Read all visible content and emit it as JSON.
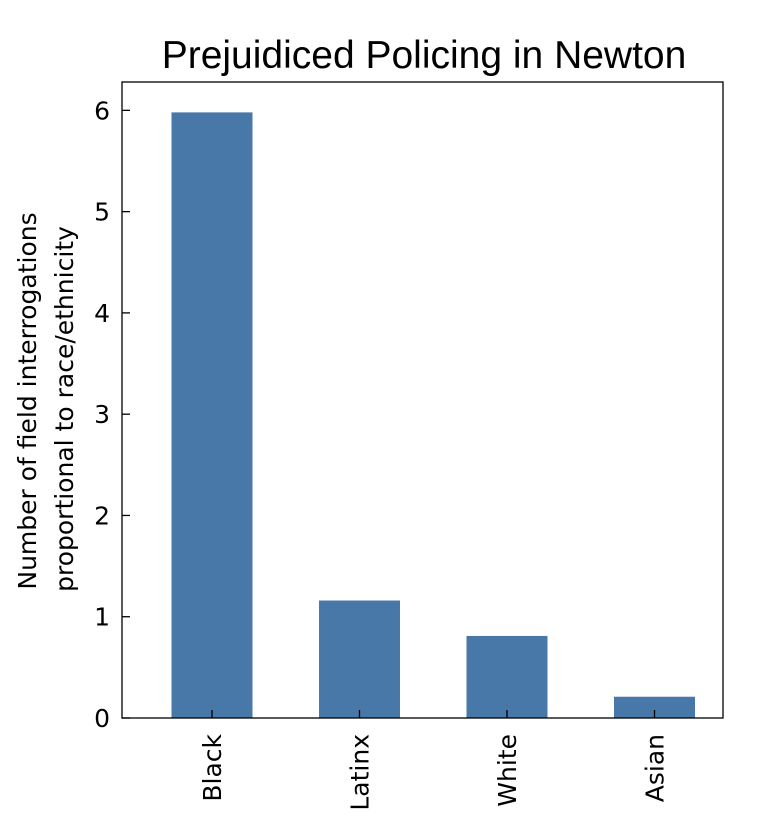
{
  "chart_data": {
    "type": "bar",
    "title": "Prejuidiced Policing in Newton",
    "xlabel": "",
    "ylabel": "Number of field interrogations proportional to race/ethnicity",
    "ylabel_lines": [
      "Number of field interrogations",
      "proportional to race/ethnicity"
    ],
    "categories": [
      "Black",
      "Latinx",
      "White",
      "Asian"
    ],
    "values": [
      5.98,
      1.16,
      0.81,
      0.21
    ],
    "ylim": [
      0,
      6.28
    ],
    "yticks": [
      0,
      1,
      2,
      3,
      4,
      5,
      6
    ],
    "grid": false,
    "legend": "none",
    "bar_color": "#4878a8",
    "ticks_direction": "in"
  }
}
